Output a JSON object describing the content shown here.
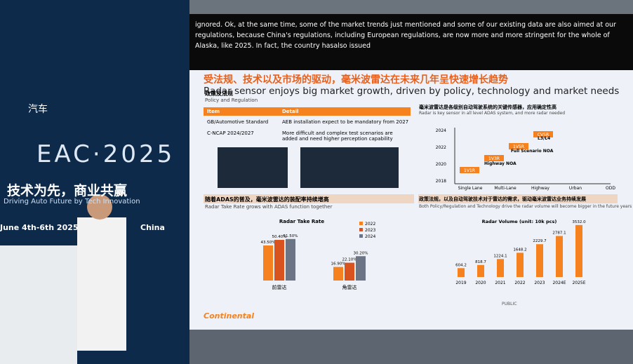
{
  "stage": {
    "event": "EAC·2025",
    "brand": "汽车",
    "slogan": "技术为先，商业共赢",
    "slogan_en": "Driving Auto Future by Tech Innovation",
    "date": "June 4th-6th 2025",
    "place": "China"
  },
  "caption": "ignored. Ok, at the same time, some of the market trends just mentioned and some of our existing data are also aimed at our regulations, because China's regulations, including European regulations, are now more and more stringent for the whole of Alaska, like 2025. In fact, the country hasalso issued",
  "slide": {
    "title": "受法规、技术以及市场的驱动，毫米波雷达在未来几年呈快速增长趋势",
    "title_en": "Radar sensor enjoys big market growth, driven by policy, technology and market needs",
    "policy": {
      "heading": "政策及法规",
      "heading_en": "Policy and Regulation",
      "columns": [
        "Item",
        "Detail"
      ],
      "rows": [
        [
          "GB/Automotive Standard",
          "AEB installation expect to be mandatory from 2027"
        ],
        [
          "C-NCAP 2024/2027",
          "More difficult and complex test scenarios are added and need higher perception capability"
        ]
      ]
    },
    "adas": {
      "heading": "毫米波雷达是各级别自动驾驶系统的关键传感器，应用确定性高",
      "heading_en": "Radar is key sensor in all level ADAS system, and more radar needed",
      "years": [
        "2024",
        "2022",
        "2020",
        "2018"
      ],
      "scenarios": [
        "Single Lane",
        "Multi-Lane",
        "Highway",
        "Urban",
        "ODD"
      ],
      "configs": [
        "1V1R",
        "1V3R",
        "1V5R",
        "CV5R"
      ],
      "stages": [
        "Highway NOA",
        "Full Scenario NOA",
        "L3/L4"
      ]
    },
    "take_rate": {
      "heading": "随着ADAS的普及，毫米波雷达的装配率持续增高",
      "heading_en": "Radar Take Rate grows with ADAS function together",
      "chart": {
        "type": "bar",
        "title": "Radar Take Rate",
        "categories": [
          "前雷达",
          "角雷达"
        ],
        "series": [
          {
            "name": "2022",
            "color": "#f5821f",
            "values": [
              43.5,
              16.9
            ],
            "value_labels": [
              "43.50%",
              "16.90%"
            ]
          },
          {
            "name": "2023",
            "color": "#d9531e",
            "values": [
              50.4,
              22.1
            ],
            "value_labels": [
              "50.40%",
              "22.10%"
            ]
          },
          {
            "name": "2024",
            "color": "#6b7585",
            "values": [
              51.5,
              30.2
            ],
            "value_labels": [
              "51.50%",
              "30.20%"
            ]
          }
        ]
      }
    },
    "volume": {
      "heading": "政策法规，以及自动驾驶技术对于雷达的需求，驱动毫米波雷达业务持续发展",
      "heading_en": "Both Policy/Regulation and Technology drive the radar volume will become bigger in the future years",
      "chart": {
        "type": "bar",
        "title": "Radar Volume (unit: 10k pcs)",
        "color": "#f5821f",
        "categories": [
          "2019",
          "2020",
          "2021",
          "2022",
          "2023",
          "2024E",
          "2025E"
        ],
        "values": [
          604.2,
          818.7,
          1224.1,
          1648.2,
          2229.7,
          2787.1,
          3532
        ],
        "value_labels": [
          "604.2",
          "818.7",
          "1224.1",
          "1648.2",
          "2229.7",
          "2787.1",
          "3532.0"
        ]
      }
    },
    "brand": "Continental",
    "classification": "PUBLIC"
  }
}
